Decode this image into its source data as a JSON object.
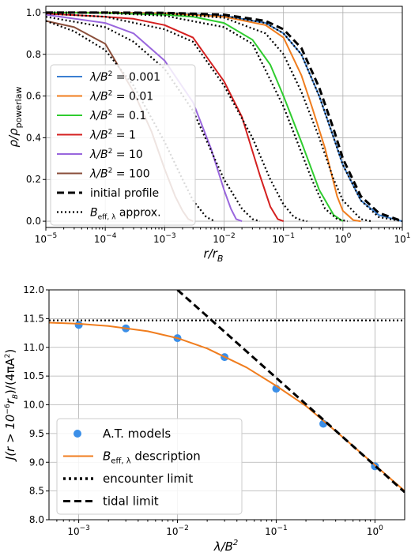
{
  "chart_data": [
    {
      "type": "line",
      "xscale": "log",
      "xlim": [
        1e-05,
        10
      ],
      "ylim": [
        -0.03,
        1.03
      ],
      "grid": true,
      "xlabel": "r/r_B",
      "ylabel": "ρ/ρ_powerlaw",
      "legend_position": "center-left",
      "x_ticks": [
        1e-05,
        0.0001,
        0.001,
        0.01,
        0.1,
        1,
        10
      ],
      "x_tick_labels": [
        "10^-5",
        "10^-4",
        "10^-3",
        "10^-2",
        "10^-1",
        "10^0",
        "10^1"
      ],
      "y_ticks": [
        0.0,
        0.2,
        0.4,
        0.6,
        0.8,
        1.0
      ],
      "y_tick_labels": [
        "0.0",
        "0.2",
        "0.4",
        "0.6",
        "0.8",
        "1.0"
      ],
      "series": [
        {
          "name": "λ/B² = 0.001",
          "color": "#3b7fd1",
          "style": "solid",
          "x": [
            1e-05,
            0.0001,
            0.001,
            0.01,
            0.05,
            0.1,
            0.2,
            0.4,
            0.7,
            1,
            2,
            4,
            10
          ],
          "y": [
            1.0,
            1.0,
            0.998,
            0.985,
            0.95,
            0.9,
            0.8,
            0.6,
            0.4,
            0.27,
            0.1,
            0.03,
            0.0
          ]
        },
        {
          "name": "λ/B² = 0.01",
          "color": "#f07d1e",
          "style": "solid",
          "x": [
            1e-05,
            0.0001,
            0.001,
            0.01,
            0.05,
            0.1,
            0.2,
            0.3,
            0.5,
            0.8,
            1,
            1.5,
            2
          ],
          "y": [
            1.0,
            1.0,
            0.997,
            0.98,
            0.94,
            0.88,
            0.7,
            0.55,
            0.35,
            0.12,
            0.05,
            0.005,
            0.0
          ]
        },
        {
          "name": "λ/B² = 0.1",
          "color": "#2fcc2f",
          "style": "solid",
          "x": [
            1e-05,
            0.0001,
            0.001,
            0.003,
            0.01,
            0.03,
            0.06,
            0.1,
            0.2,
            0.4,
            0.7,
            1
          ],
          "y": [
            1.0,
            0.998,
            0.99,
            0.98,
            0.95,
            0.87,
            0.75,
            0.6,
            0.38,
            0.15,
            0.03,
            0.0
          ]
        },
        {
          "name": "λ/B² = 1",
          "color": "#d42020",
          "style": "solid",
          "x": [
            1e-05,
            0.0001,
            0.0003,
            0.001,
            0.003,
            0.01,
            0.02,
            0.04,
            0.06,
            0.08,
            0.1
          ],
          "y": [
            0.995,
            0.98,
            0.97,
            0.94,
            0.88,
            0.67,
            0.5,
            0.22,
            0.07,
            0.01,
            0.0
          ]
        },
        {
          "name": "λ/B² = 10",
          "color": "#9966dd",
          "style": "solid",
          "x": [
            1e-05,
            0.0001,
            0.0003,
            0.001,
            0.003,
            0.006,
            0.01,
            0.013,
            0.016,
            0.02
          ],
          "y": [
            0.99,
            0.95,
            0.9,
            0.77,
            0.57,
            0.35,
            0.15,
            0.06,
            0.01,
            0.0
          ]
        },
        {
          "name": "λ/B² = 100",
          "color": "#8a4e3a",
          "style": "solid",
          "x": [
            1e-05,
            3e-05,
            0.0001,
            0.0003,
            0.0006,
            0.001,
            0.0015,
            0.002,
            0.0025,
            0.003
          ],
          "y": [
            0.96,
            0.93,
            0.85,
            0.62,
            0.43,
            0.25,
            0.12,
            0.05,
            0.01,
            0.0
          ]
        },
        {
          "name": "initial profile",
          "color": "#000000",
          "style": "dashed",
          "x": [
            1e-05,
            0.0001,
            0.001,
            0.01,
            0.05,
            0.1,
            0.2,
            0.4,
            0.7,
            1,
            2,
            4,
            10
          ],
          "y": [
            1.0,
            1.0,
            0.999,
            0.99,
            0.96,
            0.92,
            0.83,
            0.64,
            0.44,
            0.3,
            0.12,
            0.04,
            0.0
          ]
        },
        {
          "name": "B_eff,λ approx.",
          "color": "#000000",
          "style": "dotted",
          "x": [
            1e-05,
            0.0001,
            0.001,
            0.01,
            0.05,
            0.1,
            0.2,
            0.4,
            0.7,
            1,
            2,
            4,
            10
          ],
          "y": [
            1.0,
            1.0,
            0.997,
            0.985,
            0.95,
            0.9,
            0.8,
            0.6,
            0.4,
            0.27,
            0.1,
            0.02,
            0.0
          ]
        },
        {
          "name": "",
          "color": "#000000",
          "style": "dotted",
          "x": [
            1e-05,
            0.0001,
            0.001,
            0.01,
            0.05,
            0.1,
            0.2,
            0.4,
            0.7,
            1,
            2,
            3
          ],
          "y": [
            1.0,
            1.0,
            0.995,
            0.975,
            0.9,
            0.8,
            0.62,
            0.4,
            0.2,
            0.1,
            0.01,
            0.0
          ]
        },
        {
          "name": "",
          "color": "#000000",
          "style": "dotted",
          "x": [
            1e-05,
            0.0001,
            0.001,
            0.01,
            0.03,
            0.1,
            0.2,
            0.3,
            0.5,
            0.8,
            1.2
          ],
          "y": [
            1.0,
            0.998,
            0.985,
            0.93,
            0.85,
            0.55,
            0.33,
            0.2,
            0.06,
            0.01,
            0.0
          ]
        },
        {
          "name": "",
          "color": "#000000",
          "style": "dotted",
          "x": [
            1e-05,
            0.0001,
            0.001,
            0.003,
            0.01,
            0.03,
            0.06,
            0.1,
            0.15,
            0.2,
            0.25
          ],
          "y": [
            0.995,
            0.98,
            0.92,
            0.86,
            0.65,
            0.4,
            0.2,
            0.08,
            0.02,
            0.005,
            0.0
          ]
        },
        {
          "name": "",
          "color": "#000000",
          "style": "dotted",
          "x": [
            1e-05,
            0.0001,
            0.0003,
            0.001,
            0.003,
            0.01,
            0.02,
            0.03,
            0.04
          ],
          "y": [
            0.98,
            0.93,
            0.86,
            0.73,
            0.53,
            0.2,
            0.06,
            0.01,
            0.0
          ]
        },
        {
          "name": "",
          "color": "#000000",
          "style": "dotted",
          "x": [
            1e-05,
            3e-05,
            0.0001,
            0.0003,
            0.001,
            0.002,
            0.003,
            0.005,
            0.007
          ],
          "y": [
            0.96,
            0.91,
            0.82,
            0.65,
            0.38,
            0.2,
            0.1,
            0.02,
            0.0
          ]
        }
      ]
    },
    {
      "type": "line",
      "xscale": "log",
      "xlim": [
        0.0005,
        2
      ],
      "ylim": [
        8.0,
        12.0
      ],
      "grid": true,
      "xlabel": "λ/B²",
      "ylabel": "J(r > 10^-6 r_B)/(4πA²)",
      "legend_position": "bottom-left",
      "x_ticks": [
        0.001,
        0.01,
        0.1,
        1
      ],
      "x_tick_labels": [
        "10^-3",
        "10^-2",
        "10^-1",
        "10^0"
      ],
      "y_ticks": [
        8.0,
        8.5,
        9.0,
        9.5,
        10.0,
        10.5,
        11.0,
        11.5,
        12.0
      ],
      "y_tick_labels": [
        "8.0",
        "8.5",
        "9.0",
        "9.5",
        "10.0",
        "10.5",
        "11.0",
        "11.5",
        "12.0"
      ],
      "series": [
        {
          "name": "A.T. models",
          "color": "#3b8fe8",
          "style": "points",
          "x": [
            0.001,
            0.003,
            0.01,
            0.03,
            0.1,
            0.3,
            1
          ],
          "y": [
            11.39,
            11.33,
            11.16,
            10.83,
            10.28,
            9.67,
            8.93
          ]
        },
        {
          "name": "B_eff,λ description",
          "color": "#f07d1e",
          "style": "solid",
          "x": [
            0.0005,
            0.001,
            0.002,
            0.005,
            0.01,
            0.02,
            0.05,
            0.1,
            0.2,
            0.5,
            1,
            2
          ],
          "y": [
            11.43,
            11.41,
            11.37,
            11.28,
            11.16,
            10.98,
            10.65,
            10.33,
            9.98,
            9.4,
            8.95,
            8.5
          ]
        },
        {
          "name": "encounter limit",
          "color": "#000000",
          "style": "dotted",
          "x": [
            0.0005,
            2
          ],
          "y": [
            11.47,
            11.47
          ]
        },
        {
          "name": "tidal limit",
          "color": "#000000",
          "style": "dashed",
          "x": [
            0.01,
            2
          ],
          "y": [
            12.0,
            8.48
          ]
        }
      ]
    }
  ],
  "text": {
    "p1_xlabel_main": "r/r",
    "p1_xlabel_sub": "B",
    "p1_ylabel_main": "ρ/ρ",
    "p1_ylabel_sub": "powerlaw",
    "p2_xlabel_main": "λ/B",
    "p2_xlabel_sup": "2",
    "p2_ylabel_main": "J(r > 10",
    "p2_ylabel_sup": "−6",
    "p2_ylabel_mid": "r",
    "p2_ylabel_sub": "B",
    "p2_ylabel_tail": ")/(4πA",
    "p2_ylabel_sup2": "2",
    "p2_ylabel_end": ")",
    "tick_base": "10",
    "leg_prefix": "λ/B",
    "leg_sup": "2",
    "leg_values": [
      "= 0.001",
      "= 0.01",
      "= 0.1",
      "= 1",
      "= 10",
      "= 100"
    ],
    "leg_initial": "initial profile",
    "leg_beff_main": "B",
    "leg_beff_sub": "eff, λ",
    "leg_beff_tail": " approx.",
    "leg2_models": "A.T. models",
    "leg2_desc_tail": " description",
    "leg2_encounter": "encounter limit",
    "leg2_tidal": "tidal limit"
  }
}
